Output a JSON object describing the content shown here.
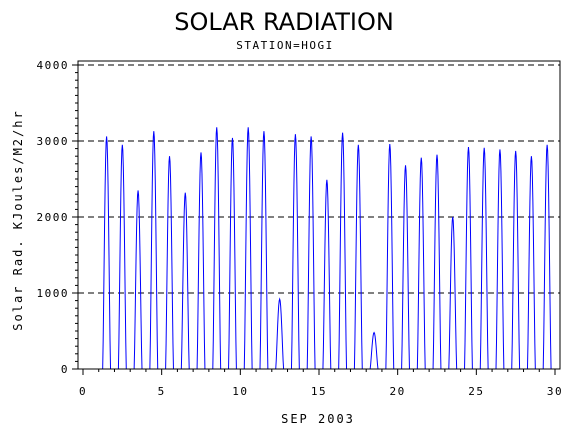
{
  "chart_data": {
    "type": "line",
    "title": "SOLAR RADIATION",
    "subtitle": "STATION=HOGI",
    "xlabel": "SEP 2003",
    "ylabel": "Solar Rad. KJoules/M2/hr",
    "xlim": [
      0,
      30
    ],
    "ylim": [
      0,
      4000
    ],
    "xticks": [
      0,
      5,
      10,
      15,
      20,
      25,
      30
    ],
    "yticks": [
      0,
      1000,
      2000,
      3000,
      4000
    ],
    "gridlines_y": [
      1000,
      2000,
      3000,
      4000
    ],
    "grid_style": "dashed",
    "line_color": "#0000ff",
    "series": [
      {
        "daily_peaks": [
          {
            "day": 1,
            "peak": 3060
          },
          {
            "day": 2,
            "peak": 2950
          },
          {
            "day": 3,
            "peak": 2350
          },
          {
            "day": 4,
            "peak": 3130
          },
          {
            "day": 5,
            "peak": 2800
          },
          {
            "day": 6,
            "peak": 2320
          },
          {
            "day": 7,
            "peak": 2850
          },
          {
            "day": 8,
            "peak": 3180
          },
          {
            "day": 9,
            "peak": 3040
          },
          {
            "day": 10,
            "peak": 3180
          },
          {
            "day": 11,
            "peak": 3130
          },
          {
            "day": 12,
            "peak": 920
          },
          {
            "day": 13,
            "peak": 3090
          },
          {
            "day": 14,
            "peak": 3060
          },
          {
            "day": 15,
            "peak": 2490
          },
          {
            "day": 16,
            "peak": 3110
          },
          {
            "day": 17,
            "peak": 2950
          },
          {
            "day": 18,
            "peak": 480
          },
          {
            "day": 19,
            "peak": 2960
          },
          {
            "day": 20,
            "peak": 2680
          },
          {
            "day": 21,
            "peak": 2780
          },
          {
            "day": 22,
            "peak": 2820
          },
          {
            "day": 23,
            "peak": 2000
          },
          {
            "day": 24,
            "peak": 2920
          },
          {
            "day": 25,
            "peak": 2910
          },
          {
            "day": 26,
            "peak": 2890
          },
          {
            "day": 27,
            "peak": 2870
          },
          {
            "day": 28,
            "peak": 2800
          },
          {
            "day": 29,
            "peak": 2950
          }
        ]
      }
    ]
  }
}
